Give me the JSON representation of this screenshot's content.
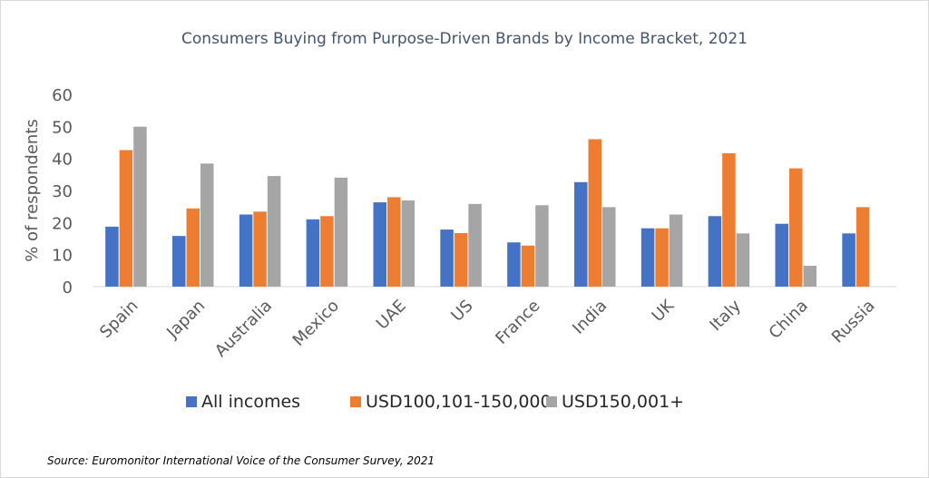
{
  "chart_data": {
    "type": "bar",
    "title": "Consumers Buying from Purpose-Driven Brands by Income Bracket, 2021",
    "ylabel": "% of respondents",
    "xlabel": "",
    "ylim": [
      0,
      60
    ],
    "yticks": [
      0,
      10,
      20,
      30,
      40,
      50,
      60
    ],
    "grid": false,
    "legend_position": "bottom",
    "categories": [
      "Spain",
      "Japan",
      "Australia",
      "Mexico",
      "UAE",
      "US",
      "France",
      "India",
      "UK",
      "Italy",
      "China",
      "Russia"
    ],
    "series": [
      {
        "name": "All incomes",
        "color": "#4472C4",
        "values": [
          18.7,
          15.8,
          22.5,
          21.0,
          26.3,
          17.8,
          13.8,
          32.6,
          18.2,
          22.0,
          19.6,
          16.6
        ]
      },
      {
        "name": "USD100,101-150,000",
        "color": "#ED7D31",
        "values": [
          42.6,
          24.4,
          23.4,
          22.0,
          27.9,
          16.7,
          12.8,
          46.0,
          18.2,
          41.6,
          36.9,
          24.8
        ]
      },
      {
        "name": "USD150,001+",
        "color": "#A5A5A5",
        "values": [
          49.9,
          38.4,
          34.5,
          34.0,
          26.9,
          25.8,
          25.4,
          24.8,
          22.5,
          16.6,
          6.5,
          null
        ]
      }
    ],
    "source": "Source: Euromonitor International Voice of the Consumer Survey, 2021"
  }
}
